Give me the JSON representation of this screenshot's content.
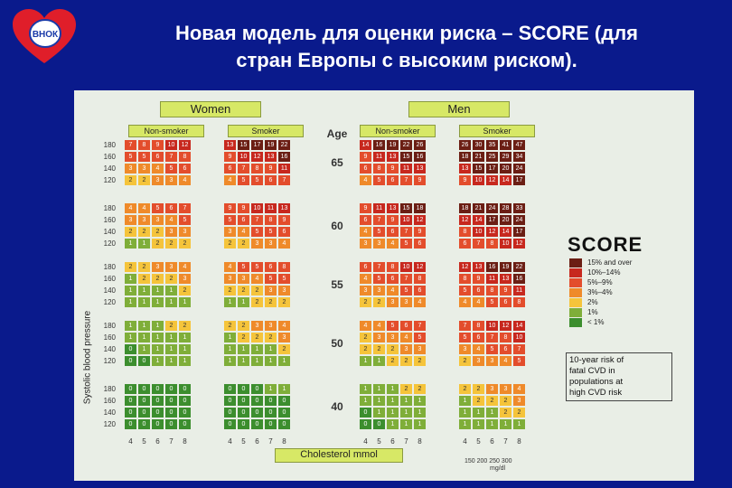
{
  "logo": {
    "text": "ВНОК"
  },
  "title": {
    "line1": "Новая модель для оценки риска – SCORE (для",
    "line2": "стран Европы с высоким риском)."
  },
  "chart": {
    "women_label": "Women",
    "men_label": "Men",
    "nonsmoker_label": "Non-smoker",
    "smoker_label": "Smoker",
    "age_label": "Age",
    "axis_label": "Systolic blood pressure",
    "xlabel": "Cholesterol mmol",
    "score_label": "SCORE",
    "mmhg_labels": "150 200 250 300",
    "mgdl_label": "mg/dl",
    "chol_ticks": [
      "4",
      "5",
      "6",
      "7",
      "8"
    ],
    "bp_ticks": [
      "180",
      "160",
      "140",
      "120"
    ],
    "ages": [
      "65",
      "60",
      "55",
      "50",
      "40"
    ],
    "legend": [
      {
        "label": "15% and over",
        "color": "#6b1e14"
      },
      {
        "label": "10%–14%",
        "color": "#c7281e"
      },
      {
        "label": "5%–9%",
        "color": "#e34d2c"
      },
      {
        "label": "3%–4%",
        "color": "#ef8a2a"
      },
      {
        "label": "2%",
        "color": "#f5c43b"
      },
      {
        "label": "1%",
        "color": "#7fae39"
      },
      {
        "label": "< 1%",
        "color": "#3c8e2e"
      }
    ],
    "note_lines": [
      "10-year risk of",
      "fatal CVD in",
      "populations at",
      "high CVD risk"
    ],
    "groups": [
      {
        "name": "women_nonsmoker",
        "rows": [
          [
            [
              7,
              8,
              9,
              10,
              12
            ],
            [
              5,
              5,
              6,
              7,
              8
            ],
            [
              3,
              3,
              4,
              5,
              6
            ],
            [
              2,
              2,
              3,
              3,
              4
            ]
          ],
          [
            [
              4,
              4,
              5,
              6,
              7
            ],
            [
              3,
              3,
              3,
              4,
              5
            ],
            [
              2,
              2,
              2,
              3,
              3
            ],
            [
              1,
              1,
              2,
              2,
              2
            ]
          ],
          [
            [
              2,
              2,
              3,
              3,
              4
            ],
            [
              1,
              2,
              2,
              2,
              3
            ],
            [
              1,
              1,
              1,
              1,
              2
            ],
            [
              1,
              1,
              1,
              1,
              1
            ]
          ],
          [
            [
              1,
              1,
              1,
              2,
              2
            ],
            [
              1,
              1,
              1,
              1,
              1
            ],
            [
              0,
              1,
              1,
              1,
              1
            ],
            [
              0,
              0,
              1,
              1,
              1
            ]
          ],
          [
            [
              0,
              0,
              0,
              0,
              0
            ],
            [
              0,
              0,
              0,
              0,
              0
            ],
            [
              0,
              0,
              0,
              0,
              0
            ],
            [
              0,
              0,
              0,
              0,
              0
            ]
          ]
        ]
      },
      {
        "name": "women_smoker",
        "rows": [
          [
            [
              13,
              15,
              17,
              19,
              22
            ],
            [
              9,
              10,
              12,
              13,
              16
            ],
            [
              6,
              7,
              8,
              9,
              11
            ],
            [
              4,
              5,
              5,
              6,
              7
            ]
          ],
          [
            [
              9,
              9,
              10,
              11,
              13
            ],
            [
              5,
              6,
              7,
              8,
              9
            ],
            [
              3,
              4,
              5,
              5,
              6
            ],
            [
              2,
              2,
              3,
              3,
              4
            ]
          ],
          [
            [
              4,
              5,
              5,
              6,
              8
            ],
            [
              3,
              3,
              4,
              5,
              5
            ],
            [
              2,
              2,
              2,
              3,
              3
            ],
            [
              1,
              1,
              2,
              2,
              2
            ]
          ],
          [
            [
              2,
              2,
              3,
              3,
              4
            ],
            [
              1,
              2,
              2,
              2,
              3
            ],
            [
              1,
              1,
              1,
              1,
              2
            ],
            [
              1,
              1,
              1,
              1,
              1
            ]
          ],
          [
            [
              0,
              0,
              0,
              1,
              1
            ],
            [
              0,
              0,
              0,
              0,
              0
            ],
            [
              0,
              0,
              0,
              0,
              0
            ],
            [
              0,
              0,
              0,
              0,
              0
            ]
          ]
        ]
      },
      {
        "name": "men_nonsmoker",
        "rows": [
          [
            [
              14,
              16,
              19,
              22,
              26
            ],
            [
              9,
              11,
              13,
              15,
              16
            ],
            [
              6,
              8,
              9,
              11,
              13
            ],
            [
              4,
              5,
              6,
              7,
              9
            ]
          ],
          [
            [
              9,
              11,
              13,
              15,
              18
            ],
            [
              6,
              7,
              9,
              10,
              12
            ],
            [
              4,
              5,
              6,
              7,
              9
            ],
            [
              3,
              3,
              4,
              5,
              6
            ]
          ],
          [
            [
              6,
              7,
              8,
              10,
              12
            ],
            [
              4,
              5,
              6,
              7,
              8
            ],
            [
              3,
              3,
              4,
              5,
              6
            ],
            [
              2,
              2,
              3,
              3,
              4
            ]
          ],
          [
            [
              4,
              4,
              5,
              6,
              7
            ],
            [
              2,
              3,
              3,
              4,
              5
            ],
            [
              2,
              2,
              2,
              3,
              3
            ],
            [
              1,
              1,
              2,
              2,
              2
            ]
          ],
          [
            [
              1,
              1,
              1,
              2,
              2
            ],
            [
              1,
              1,
              1,
              1,
              1
            ],
            [
              0,
              1,
              1,
              1,
              1
            ],
            [
              0,
              0,
              1,
              1,
              1
            ]
          ]
        ]
      },
      {
        "name": "men_smoker",
        "rows": [
          [
            [
              26,
              30,
              35,
              41,
              47
            ],
            [
              18,
              21,
              25,
              29,
              34
            ],
            [
              13,
              15,
              17,
              20,
              24
            ],
            [
              9,
              10,
              12,
              14,
              17
            ]
          ],
          [
            [
              18,
              21,
              24,
              28,
              33
            ],
            [
              12,
              14,
              17,
              20,
              24
            ],
            [
              8,
              10,
              12,
              14,
              17
            ],
            [
              6,
              7,
              8,
              10,
              12
            ]
          ],
          [
            [
              12,
              13,
              16,
              19,
              22
            ],
            [
              8,
              9,
              11,
              13,
              16
            ],
            [
              5,
              6,
              8,
              9,
              11
            ],
            [
              4,
              4,
              5,
              6,
              8
            ]
          ],
          [
            [
              7,
              8,
              10,
              12,
              14
            ],
            [
              5,
              6,
              7,
              8,
              10
            ],
            [
              3,
              4,
              5,
              6,
              7
            ],
            [
              2,
              3,
              3,
              4,
              5
            ]
          ],
          [
            [
              2,
              2,
              3,
              3,
              4
            ],
            [
              1,
              2,
              2,
              2,
              3
            ],
            [
              1,
              1,
              1,
              2,
              2
            ],
            [
              1,
              1,
              1,
              1,
              1
            ]
          ]
        ]
      }
    ]
  }
}
